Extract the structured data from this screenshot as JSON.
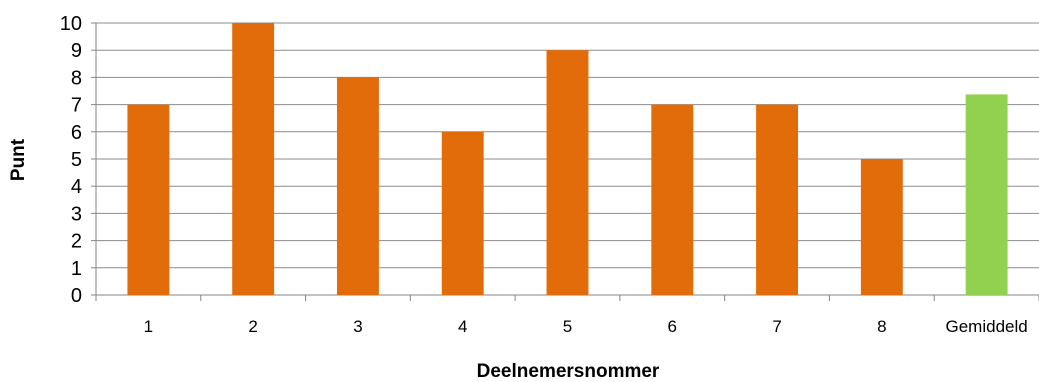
{
  "chart_data": {
    "type": "bar",
    "categories": [
      "1",
      "2",
      "3",
      "4",
      "5",
      "6",
      "7",
      "8",
      "Gemiddeld"
    ],
    "values": [
      7,
      10,
      8,
      6,
      9,
      7,
      7,
      5,
      7.375
    ],
    "bar_colors": [
      "#E36C0A",
      "#E36C0A",
      "#E36C0A",
      "#E36C0A",
      "#E36C0A",
      "#E36C0A",
      "#E36C0A",
      "#E36C0A",
      "#92D050"
    ],
    "title": "",
    "xlabel": "Deelnemersnommer",
    "ylabel": "Punt",
    "ylim": [
      0,
      10
    ],
    "yticks": [
      0,
      1,
      2,
      3,
      4,
      5,
      6,
      7,
      8,
      9,
      10
    ],
    "grid": true,
    "legend": "none"
  },
  "colors": {
    "bar": "#E36C0A",
    "average_bar": "#92D050",
    "grid": "#8C8C8C",
    "axis": "#868686"
  }
}
